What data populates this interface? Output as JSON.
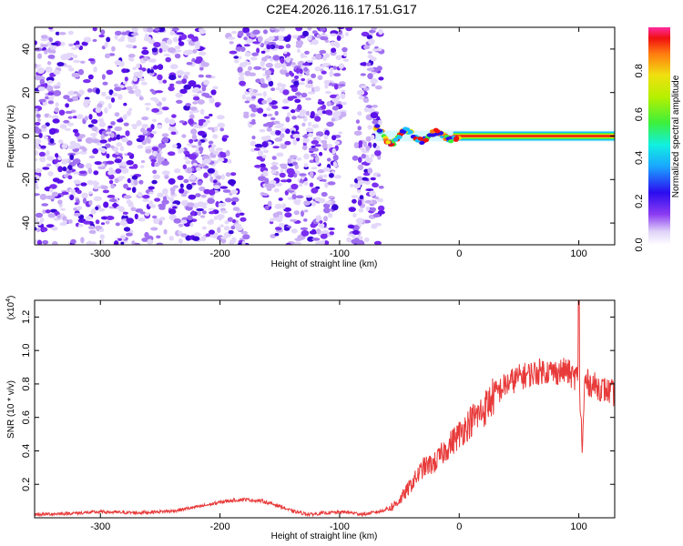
{
  "title": "C2E4.2026.116.17.51.G17",
  "chart_data": [
    {
      "type": "heatmap",
      "name": "spectrogram",
      "xlabel": "Height of straight line (km)",
      "ylabel": "Frequency (Hz)",
      "xlim": [
        -355,
        130
      ],
      "ylim": [
        -50,
        50
      ],
      "xticks": [
        -300,
        -200,
        -100,
        0,
        100
      ],
      "yticks": [
        -40,
        -20,
        0,
        20,
        40
      ],
      "colorbar": {
        "label": "Normalized spectral amplitude",
        "range": [
          0,
          1
        ],
        "ticks": [
          0.0,
          0.2,
          0.4,
          0.6,
          0.8
        ]
      },
      "features": {
        "noise_region_x": [
          -355,
          -65
        ],
        "carrier_start_x": -70,
        "carrier_frequency_hz": 0
      }
    },
    {
      "type": "line",
      "name": "snr",
      "xlabel": "Height of straight line (km)",
      "ylabel": "SNR (10 * v/v)",
      "yscale_note": "(x10",
      "yscale_exp": "4",
      "xlim": [
        -355,
        130
      ],
      "ylim": [
        0,
        1.3
      ],
      "xticks": [
        -300,
        -200,
        -100,
        0,
        100
      ],
      "yticks": [
        0.2,
        0.4,
        0.6,
        0.8,
        1.0,
        1.2
      ],
      "color": "#e83a3a",
      "series": [
        {
          "name": "SNR",
          "x": [
            -355,
            -330,
            -300,
            -270,
            -240,
            -215,
            -195,
            -180,
            -165,
            -150,
            -140,
            -125,
            -110,
            -95,
            -80,
            -65,
            -55,
            -48,
            -40,
            -30,
            -20,
            -10,
            0,
            10,
            20,
            30,
            40,
            50,
            60,
            70,
            80,
            90,
            95,
            100,
            103,
            105,
            110,
            120,
            130
          ],
          "y": [
            0.02,
            0.025,
            0.035,
            0.03,
            0.04,
            0.07,
            0.1,
            0.11,
            0.1,
            0.07,
            0.04,
            0.02,
            0.03,
            0.035,
            0.02,
            0.04,
            0.07,
            0.12,
            0.2,
            0.3,
            0.33,
            0.42,
            0.5,
            0.58,
            0.64,
            0.74,
            0.8,
            0.84,
            0.86,
            0.88,
            0.87,
            0.88,
            0.84,
            0.85,
            0.4,
            0.82,
            0.8,
            0.77,
            0.74
          ]
        }
      ]
    }
  ]
}
